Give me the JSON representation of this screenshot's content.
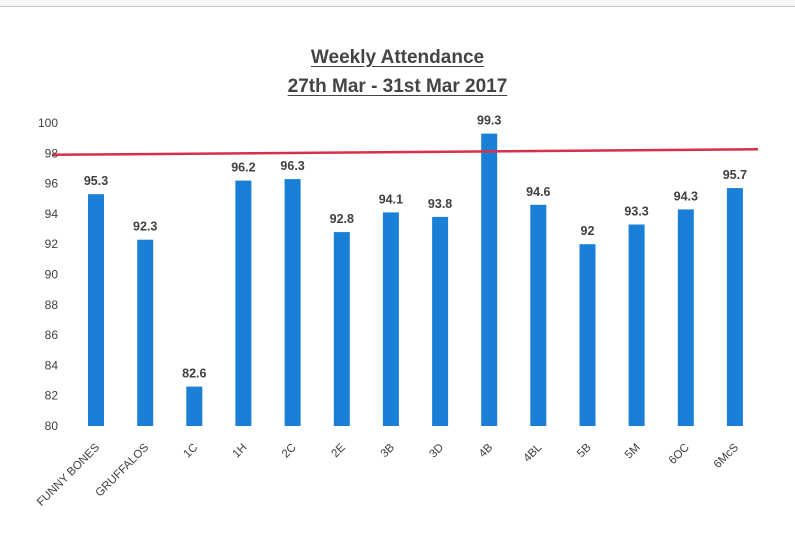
{
  "chart_data": {
    "type": "bar",
    "title": "Weekly Attendance",
    "subtitle": "27th Mar - 31st Mar 2017",
    "xlabel": "",
    "ylabel": "",
    "categories": [
      "FUNNY BONES",
      "GRUFFALOS",
      "1C",
      "1H",
      "2C",
      "2E",
      "3B",
      "3D",
      "4B",
      "4BL",
      "5B",
      "5M",
      "6OC",
      "6McS"
    ],
    "series": [
      {
        "values": [
          95.3,
          92.3,
          82.6,
          96.2,
          96.3,
          92.8,
          94.1,
          93.8,
          99.3,
          94.6,
          92,
          93.3,
          94.3,
          95.7
        ],
        "labels": [
          "95.3",
          "92.3",
          "82.6",
          "96.2",
          "96.3",
          "92.8",
          "94.1",
          "93.8",
          "99.3",
          "94.6",
          "92",
          "93.3",
          "94.3",
          "95.7"
        ]
      }
    ],
    "ylim": [
      80,
      100
    ],
    "yticks": [
      "80",
      "82",
      "84",
      "86",
      "88",
      "90",
      "92",
      "94",
      "96",
      "98",
      "100"
    ],
    "target_line": {
      "value": 98
    },
    "grid": false,
    "legend": "none",
    "colors": {
      "bar": "#1a7fd6",
      "target_line": "#d6304a",
      "text": "#404040"
    }
  }
}
